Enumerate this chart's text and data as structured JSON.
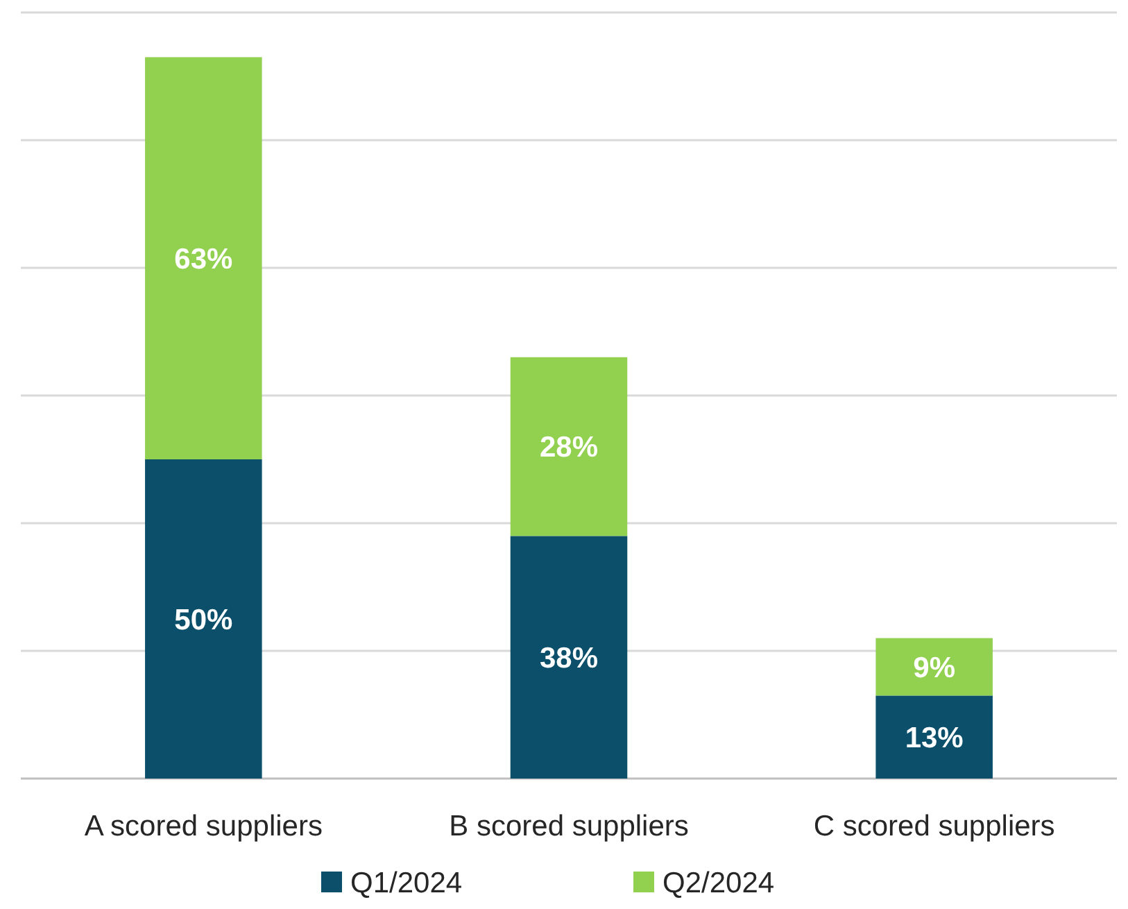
{
  "chart_data": {
    "type": "bar",
    "stacked": true,
    "categories": [
      "A scored suppliers",
      "B scored suppliers",
      "C scored suppliers"
    ],
    "series": [
      {
        "name": "Q1/2024",
        "color": "#0b4f6a",
        "values": [
          50,
          38,
          13
        ],
        "value_labels": [
          "50%",
          "38%",
          "13%"
        ]
      },
      {
        "name": "Q2/2024",
        "color": "#92d050",
        "values": [
          63,
          28,
          9
        ],
        "value_labels": [
          "63%",
          "28%",
          "9%"
        ]
      }
    ],
    "ylim": [
      0,
      120
    ],
    "yticks": [
      {
        "value": 0,
        "label": null
      },
      {
        "value": 20,
        "label": null
      },
      {
        "value": 40,
        "label": null
      },
      {
        "value": 60,
        "label": null
      },
      {
        "value": 80,
        "label": null
      },
      {
        "value": 100,
        "label": null
      },
      {
        "value": 120,
        "label": null
      }
    ],
    "tick_labels": "x",
    "grid": "y",
    "legend": "bottom"
  }
}
